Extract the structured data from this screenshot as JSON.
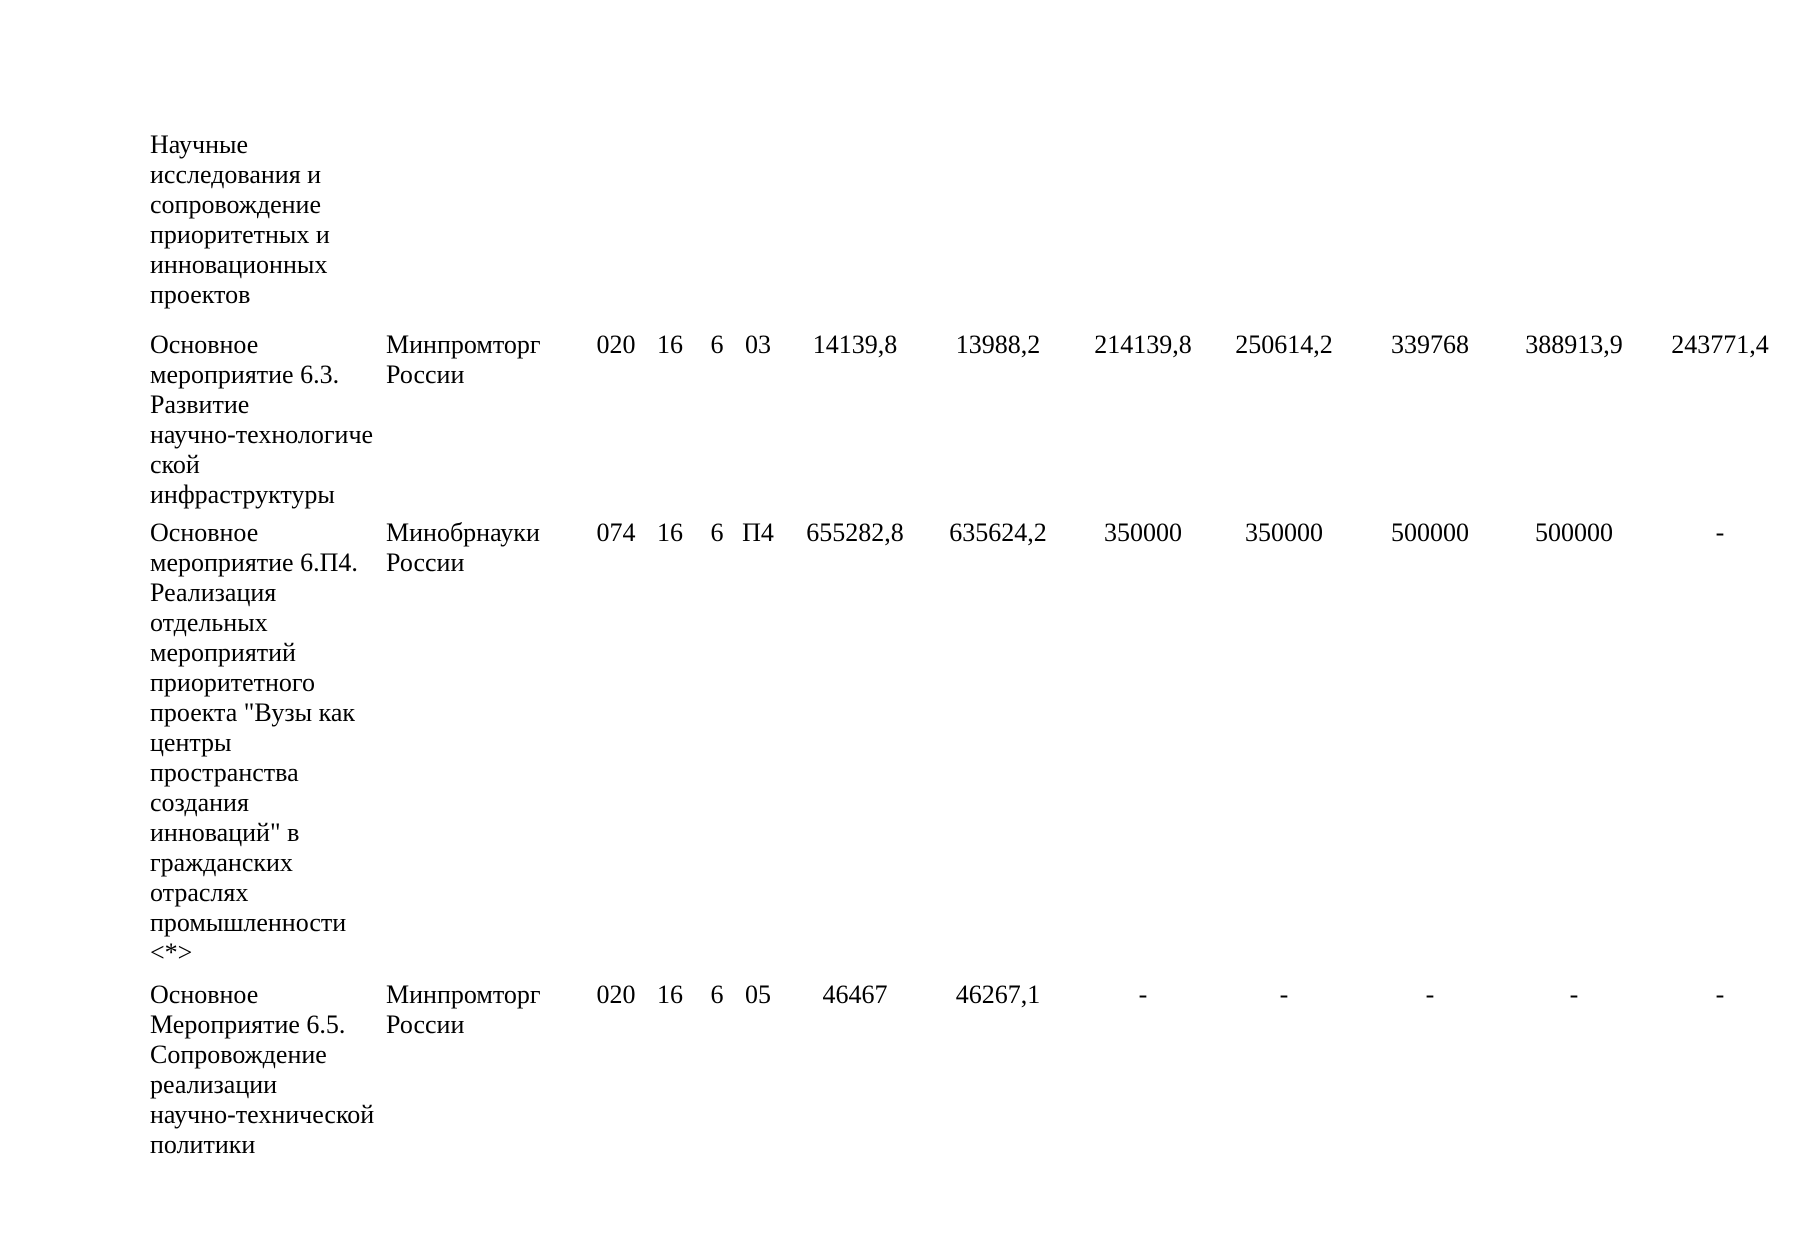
{
  "page": {
    "background": "#ffffff",
    "text_color": "#000000"
  },
  "table": {
    "continuation_cell": "Научные\nисследования и\nсопровождение\nприоритетных и\nинновационных\nпроектов",
    "rows": [
      {
        "name": "Основное\nмероприятие 6.3.\nРазвитие\nнаучно-технологиче\nской\nинфраструктуры",
        "ministry": "Минпромторг\nРоссии",
        "codes": [
          "020",
          "16",
          "6",
          "03"
        ],
        "values": [
          "14139,8",
          "13988,2",
          "214139,8",
          "250614,2",
          "339768",
          "388913,9",
          "243771,4"
        ]
      },
      {
        "name": "Основное\nмероприятие 6.П4.\nРеализация\nотдельных\nмероприятий\nприоритетного\nпроекта \"Вузы как\nцентры\nпространства\nсоздания\nинноваций\" в\nгражданских\nотраслях\nпромышленности\n<*>",
        "ministry": "Минобрнауки\nРоссии",
        "codes": [
          "074",
          "16",
          "6",
          "П4"
        ],
        "values": [
          "655282,8",
          "635624,2",
          "350000",
          "350000",
          "500000",
          "500000",
          "-"
        ]
      },
      {
        "name": "Основное\nМероприятие 6.5.\nСопровождение\nреализации\nнаучно-технической\nполитики",
        "ministry": "Минпромторг\nРоссии",
        "codes": [
          "020",
          "16",
          "6",
          "05"
        ],
        "values": [
          "46467",
          "46267,1",
          "-",
          "-",
          "-",
          "-",
          "-"
        ]
      }
    ]
  }
}
